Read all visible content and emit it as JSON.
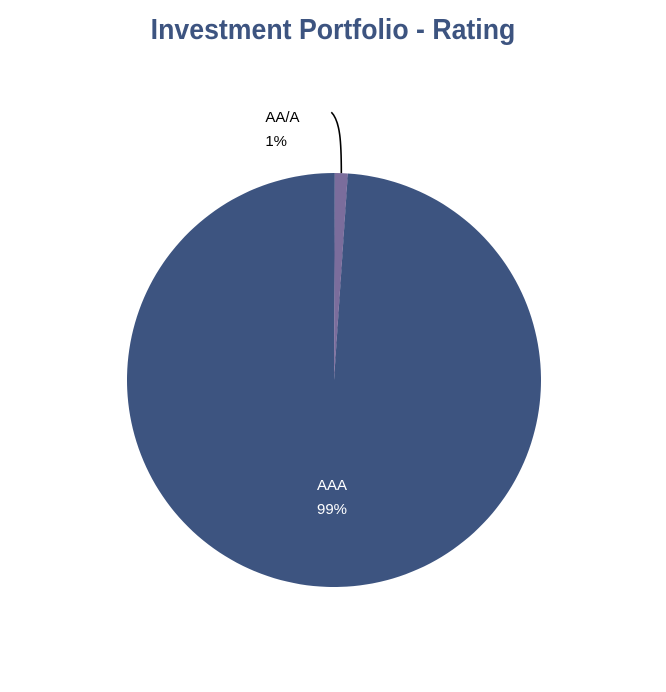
{
  "chart_data": {
    "type": "pie",
    "title": "Investment Portfolio - Rating",
    "slices": [
      {
        "label": "AAA",
        "value": 99,
        "display": "99%",
        "color": "#3d5480",
        "label_color": "#ffffff"
      },
      {
        "label": "AA/A",
        "value": 1,
        "display": "1%",
        "color": "#7b6d9c",
        "label_color": "#000000"
      }
    ],
    "legend": "none"
  }
}
